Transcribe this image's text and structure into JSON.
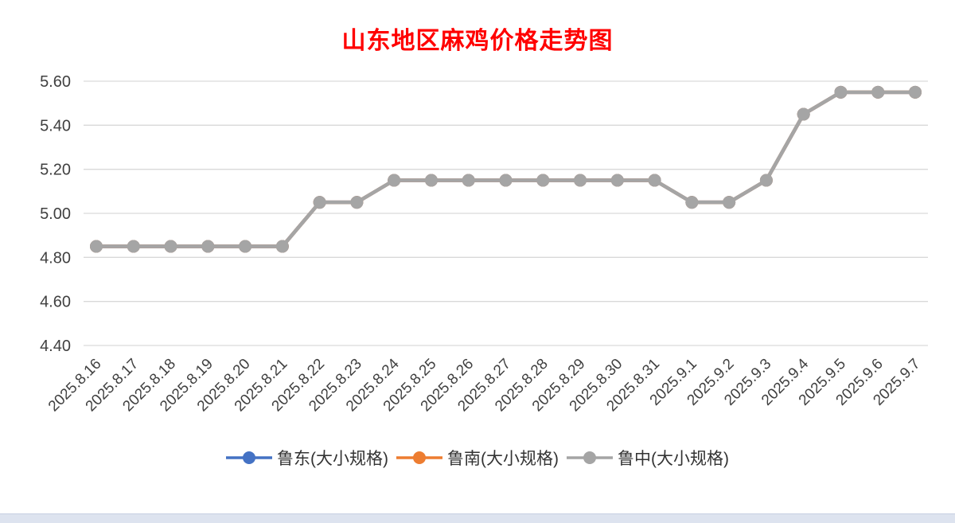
{
  "chart_data": {
    "type": "line",
    "title": "山东地区麻鸡价格走势图",
    "title_color": "#ff0000",
    "x": [
      "2025.8.16",
      "2025.8.17",
      "2025.8.18",
      "2025.8.19",
      "2025.8.20",
      "2025.8.21",
      "2025.8.22",
      "2025.8.23",
      "2025.8.24",
      "2025.8.25",
      "2025.8.26",
      "2025.8.27",
      "2025.8.28",
      "2025.8.29",
      "2025.8.30",
      "2025.8.31",
      "2025.9.1",
      "2025.9.2",
      "2025.9.3",
      "2025.9.4",
      "2025.9.5",
      "2025.9.6",
      "2025.9.7"
    ],
    "series": [
      {
        "name": "鲁东(大小规格)",
        "color": "#4472c4",
        "values": [
          4.85,
          4.85,
          4.85,
          4.85,
          4.85,
          4.85,
          5.05,
          5.05,
          5.15,
          5.15,
          5.15,
          5.15,
          5.15,
          5.15,
          5.15,
          5.15,
          5.05,
          5.05,
          5.15,
          5.45,
          5.55,
          5.55,
          5.55
        ]
      },
      {
        "name": "鲁南(大小规格)",
        "color": "#ed7d31",
        "values": [
          4.85,
          4.85,
          4.85,
          4.85,
          4.85,
          4.85,
          5.05,
          5.05,
          5.15,
          5.15,
          5.15,
          5.15,
          5.15,
          5.15,
          5.15,
          5.15,
          5.05,
          5.05,
          5.15,
          5.45,
          5.55,
          5.55,
          5.55
        ]
      },
      {
        "name": "鲁中(大小规格)",
        "color": "#a5a5a5",
        "values": [
          4.85,
          4.85,
          4.85,
          4.85,
          4.85,
          4.85,
          5.05,
          5.05,
          5.15,
          5.15,
          5.15,
          5.15,
          5.15,
          5.15,
          5.15,
          5.15,
          5.05,
          5.05,
          5.15,
          5.45,
          5.55,
          5.55,
          5.55
        ]
      }
    ],
    "ylim": [
      4.4,
      5.6
    ],
    "ytick_interval": 0.2,
    "yticks": [
      "5.60",
      "5.40",
      "5.20",
      "5.00",
      "4.80",
      "4.60",
      "4.40"
    ],
    "grid": true,
    "legend_position": "bottom",
    "marker": "circle"
  }
}
